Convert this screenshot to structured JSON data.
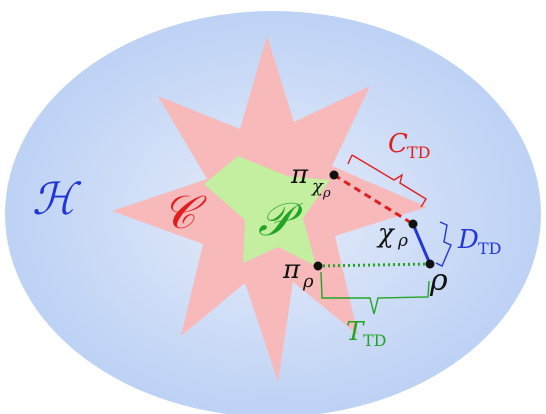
{
  "labels": {
    "hilbert": "ℋ",
    "classical": "𝒞",
    "product": "𝒫",
    "rho": "ρ",
    "pi": "π",
    "chi": "χ",
    "sub_rho": "ρ",
    "C": "C",
    "D": "D",
    "T": "T",
    "TD": "TD"
  },
  "colors": {
    "ellipse_outer": "#b9cff4",
    "ellipse_inner": "#e6ecfa",
    "star": "#f7b9b9",
    "product_star": "#c4eea0",
    "hilbert_label": "#1f35d8",
    "classical_label": "#e01f1f",
    "product_label": "#23a523",
    "c_td": "#e01f1f",
    "d_td": "#2436d6",
    "t_td": "#23a523",
    "points": "#111111"
  }
}
